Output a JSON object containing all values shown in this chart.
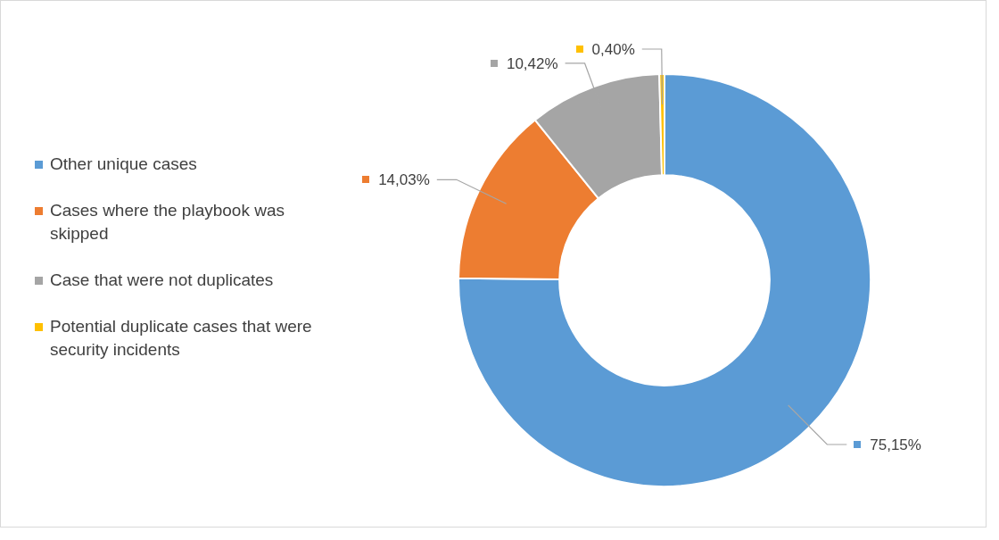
{
  "chart_data": {
    "type": "donut",
    "categories": [
      "Other unique cases",
      "Cases where the playbook was skipped",
      "Case that were not duplicates",
      "Potential duplicate cases that were security incidents"
    ],
    "values": [
      75.15,
      14.03,
      10.42,
      0.4
    ],
    "colors": [
      "#5b9bd5",
      "#ed7d31",
      "#a5a5a5",
      "#ffc000"
    ],
    "value_labels": [
      "75,15%",
      "14,03%",
      "10,42%",
      "0,40%"
    ],
    "legend": "left"
  }
}
